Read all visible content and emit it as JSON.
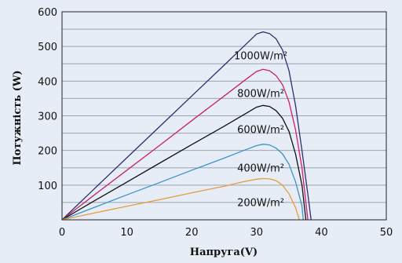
{
  "chart_data": {
    "type": "line",
    "title": "",
    "xlabel": "Напруга(V)",
    "ylabel": "Потужність (W)",
    "xlim": [
      0,
      50
    ],
    "ylim": [
      0,
      600
    ],
    "x_ticks": [
      "0",
      "10",
      "20",
      "30",
      "40",
      "50"
    ],
    "y_ticks": [
      "100",
      "200",
      "300",
      "400",
      "500",
      "600"
    ],
    "grid": "horizontal",
    "series": [
      {
        "name": "1000W/m²",
        "color": "#2e2d6e",
        "points": [
          [
            0,
            0
          ],
          [
            5,
            90
          ],
          [
            10,
            179
          ],
          [
            15,
            268
          ],
          [
            20,
            357
          ],
          [
            25,
            446
          ],
          [
            28,
            500
          ],
          [
            30,
            536
          ],
          [
            31,
            542
          ],
          [
            32,
            537
          ],
          [
            33,
            522
          ],
          [
            34,
            490
          ],
          [
            35,
            430
          ],
          [
            36,
            330
          ],
          [
            37,
            200
          ],
          [
            38,
            60
          ],
          [
            38.4,
            0
          ]
        ]
      },
      {
        "name": "800W/m²",
        "color": "#c8206a",
        "points": [
          [
            0,
            0
          ],
          [
            5,
            72
          ],
          [
            10,
            143
          ],
          [
            15,
            214
          ],
          [
            20,
            286
          ],
          [
            25,
            357
          ],
          [
            28,
            400
          ],
          [
            30,
            428
          ],
          [
            31,
            434
          ],
          [
            32,
            430
          ],
          [
            33,
            416
          ],
          [
            34,
            390
          ],
          [
            35,
            340
          ],
          [
            36,
            260
          ],
          [
            37,
            150
          ],
          [
            37.9,
            0
          ]
        ]
      },
      {
        "name": "600W/m²",
        "color": "#111111",
        "points": [
          [
            0,
            0
          ],
          [
            5,
            55
          ],
          [
            10,
            109
          ],
          [
            15,
            163
          ],
          [
            20,
            217
          ],
          [
            25,
            270
          ],
          [
            28,
            303
          ],
          [
            30,
            325
          ],
          [
            31,
            330
          ],
          [
            32,
            327
          ],
          [
            33,
            315
          ],
          [
            34,
            293
          ],
          [
            35,
            255
          ],
          [
            36,
            190
          ],
          [
            37,
            100
          ],
          [
            37.6,
            0
          ]
        ]
      },
      {
        "name": "400W/m²",
        "color": "#3b93c4",
        "points": [
          [
            0,
            0
          ],
          [
            5,
            36
          ],
          [
            10,
            72
          ],
          [
            15,
            107
          ],
          [
            20,
            143
          ],
          [
            25,
            178
          ],
          [
            28,
            200
          ],
          [
            30,
            214
          ],
          [
            31,
            218
          ],
          [
            32,
            216
          ],
          [
            33,
            207
          ],
          [
            34,
            190
          ],
          [
            35,
            160
          ],
          [
            36,
            110
          ],
          [
            37,
            40
          ],
          [
            37.2,
            0
          ]
        ]
      },
      {
        "name": "200W/m²",
        "color": "#e89a3c",
        "points": [
          [
            0,
            0
          ],
          [
            5,
            20
          ],
          [
            10,
            39
          ],
          [
            15,
            58
          ],
          [
            20,
            78
          ],
          [
            25,
            97
          ],
          [
            28,
            110
          ],
          [
            30,
            117
          ],
          [
            31,
            119
          ],
          [
            32,
            118
          ],
          [
            33,
            113
          ],
          [
            34,
            100
          ],
          [
            35,
            75
          ],
          [
            36,
            35
          ],
          [
            36.6,
            0
          ]
        ]
      }
    ]
  }
}
